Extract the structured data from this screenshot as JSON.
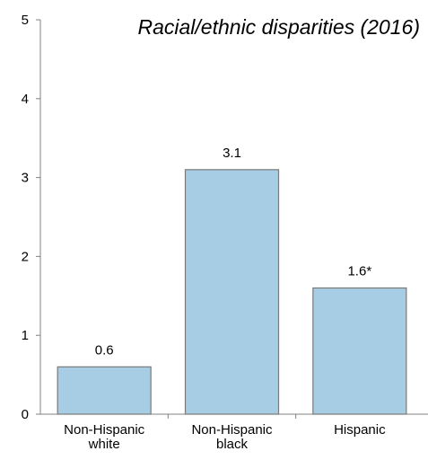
{
  "chart_data": {
    "type": "bar",
    "title": "Racial/ethnic disparities (2016)",
    "categories": [
      [
        "Non-Hispanic",
        "white"
      ],
      [
        "Non-Hispanic",
        "black"
      ],
      [
        "Hispanic"
      ]
    ],
    "values": [
      0.6,
      3.1,
      1.6
    ],
    "data_labels": [
      "0.6",
      "3.1",
      "1.6*"
    ],
    "yticks": [
      "0",
      "1",
      "2",
      "3",
      "4",
      "5"
    ],
    "ylim": [
      0,
      5
    ],
    "xlabel": "",
    "ylabel": "",
    "grid": false,
    "colors": {
      "bar_fill": "#a6cde3",
      "bar_stroke": "#7a7a7a",
      "axis": "#808080"
    }
  }
}
